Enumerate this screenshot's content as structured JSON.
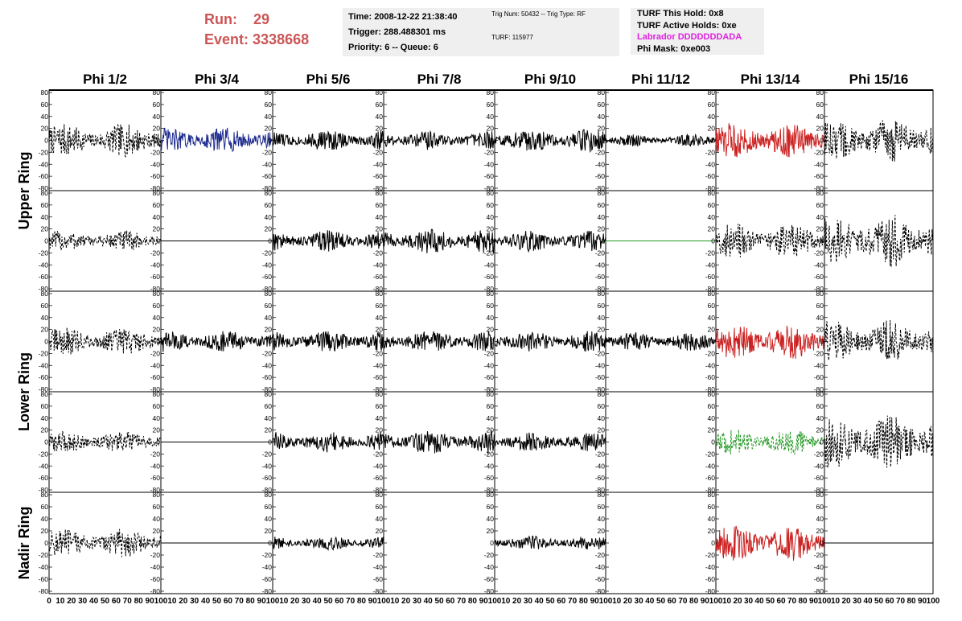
{
  "header": {
    "run_label": "Run:",
    "run_value": "29",
    "event_label": "Event:",
    "event_value": "3338668",
    "time": "Time: 2008-12-22 21:38:40",
    "trigger": "Trigger: 288.488301 ms",
    "priority": "Priority: 6 -- Queue: 6",
    "trig_num": "Trig Num: 50432 -- Trig Type: RF",
    "turf": "TURF: 115977",
    "turf_this_hold": "TURF This Hold: 0x8",
    "turf_active_holds": "TURF Active Holds: 0xe",
    "labrador": "Labrador DDDDDDDADA",
    "phi_mask": "Phi Mask: 0xe003",
    "labrador_color": "#e020e0"
  },
  "chart_data": {
    "type": "line",
    "columns": [
      "Phi 1/2",
      "Phi 3/4",
      "Phi 5/6",
      "Phi 7/8",
      "Phi 9/10",
      "Phi 11/12",
      "Phi 13/14",
      "Phi 15/16"
    ],
    "ring_labels": [
      "Upper Ring",
      "Lower Ring",
      "Nadir Ring"
    ],
    "rows": 5,
    "ylim": [
      -80,
      80
    ],
    "y_ticks": [
      -80,
      -60,
      -40,
      -20,
      0,
      20,
      40,
      60,
      80
    ],
    "xlim": [
      0,
      100
    ],
    "x_tick_labels": [
      "0",
      "10",
      "20",
      "30",
      "40",
      "50",
      "60",
      "70",
      "80",
      "90",
      "100"
    ],
    "colors": {
      "black": "#000000",
      "blue": "#1c2a8c",
      "red": "#cc2222",
      "green": "#229922"
    },
    "panels": [
      [
        {
          "amp": 28,
          "style": "dashed",
          "color": "black"
        },
        {
          "amp": 22,
          "style": "solid",
          "color": "blue"
        },
        {
          "amp": 18,
          "style": "solid",
          "color": "black"
        },
        {
          "amp": 16,
          "style": "solid",
          "color": "black"
        },
        {
          "amp": 20,
          "style": "solid",
          "color": "black"
        },
        {
          "amp": 10,
          "style": "solid",
          "color": "black"
        },
        {
          "amp": 30,
          "style": "solid",
          "color": "red"
        },
        {
          "amp": 38,
          "style": "dashed",
          "color": "black"
        }
      ],
      [
        {
          "amp": 18,
          "style": "dashed",
          "color": "black"
        },
        {
          "amp": 0,
          "style": "flat",
          "color": "black"
        },
        {
          "amp": 18,
          "style": "solid",
          "color": "black"
        },
        {
          "amp": 22,
          "style": "solid",
          "color": "black"
        },
        {
          "amp": 18,
          "style": "solid",
          "color": "black"
        },
        {
          "amp": 0,
          "style": "flat",
          "color": "green"
        },
        {
          "amp": 30,
          "style": "dashed",
          "color": "black"
        },
        {
          "amp": 45,
          "style": "dashed",
          "color": "black"
        }
      ],
      [
        {
          "amp": 24,
          "style": "dashed",
          "color": "black"
        },
        {
          "amp": 18,
          "style": "solid",
          "color": "black"
        },
        {
          "amp": 18,
          "style": "solid",
          "color": "black"
        },
        {
          "amp": 18,
          "style": "solid",
          "color": "black"
        },
        {
          "amp": 18,
          "style": "solid",
          "color": "black"
        },
        {
          "amp": 16,
          "style": "solid",
          "color": "black"
        },
        {
          "amp": 32,
          "style": "solid",
          "color": "red"
        },
        {
          "amp": 36,
          "style": "dashed",
          "color": "black"
        }
      ],
      [
        {
          "amp": 18,
          "style": "dashed",
          "color": "black"
        },
        {
          "amp": 0,
          "style": "flat",
          "color": "black"
        },
        {
          "amp": 18,
          "style": "solid",
          "color": "black"
        },
        {
          "amp": 20,
          "style": "solid",
          "color": "black"
        },
        {
          "amp": 16,
          "style": "solid",
          "color": "black"
        },
        {
          "amp": 0,
          "style": "none",
          "color": "black"
        },
        {
          "amp": 22,
          "style": "dashed",
          "color": "green"
        },
        {
          "amp": 45,
          "style": "dashed",
          "color": "black"
        }
      ],
      [
        {
          "amp": 24,
          "style": "dashed",
          "color": "black"
        },
        {
          "amp": 0,
          "style": "flat",
          "color": "black"
        },
        {
          "amp": 12,
          "style": "solid",
          "color": "black"
        },
        {
          "amp": 0,
          "style": "none",
          "color": "black"
        },
        {
          "amp": 12,
          "style": "solid",
          "color": "black"
        },
        {
          "amp": 0,
          "style": "none",
          "color": "black"
        },
        {
          "amp": 30,
          "style": "solid",
          "color": "red"
        },
        {
          "amp": 0,
          "style": "flat",
          "color": "black"
        }
      ]
    ]
  }
}
